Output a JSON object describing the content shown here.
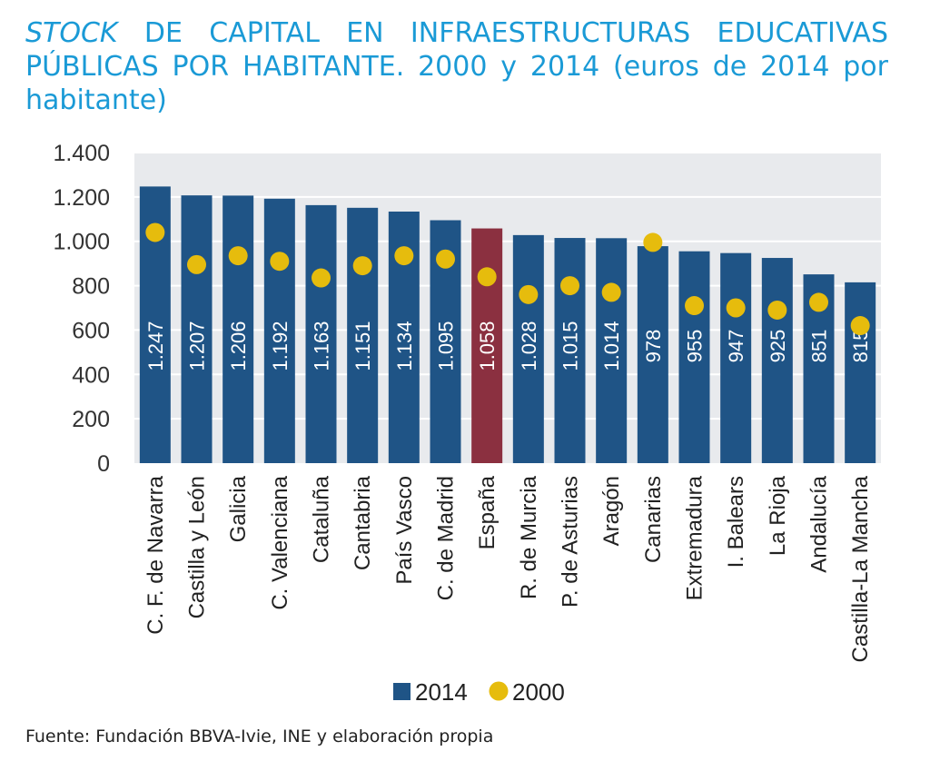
{
  "title": {
    "italic_word": "STOCK",
    "rest": " DE CAPITAL EN INFRAESTRUCTURAS EDUCATIVAS PÚBLICAS POR HABITANTE. 2000 y 2014 (euros de 2014 por habitante)"
  },
  "source": "Fuente: Fundación BBVA-Ivie, INE y elaboración propia",
  "colors": {
    "bar": "#1f5486",
    "highlight_bar": "#8b3040",
    "dot": "#e6bc0d",
    "plot_bg": "#e8eaed",
    "grid": "#ffffff",
    "title": "#1a9ad6"
  },
  "chart_data": {
    "type": "bar",
    "categories": [
      "C. F. de Navarra",
      "Castilla y León",
      "Galicia",
      "C. Valenciana",
      "Cataluña",
      "Cantabria",
      "País Vasco",
      "C. de Madrid",
      "España",
      "R. de Murcia",
      "P. de Asturias",
      "Aragón",
      "Canarias",
      "Extremadura",
      "I. Balears",
      "La Rioja",
      "Andalucía",
      "Castilla-La Mancha"
    ],
    "highlight_category": "España",
    "series": [
      {
        "name": "2014",
        "mark": "bar",
        "values": [
          1247,
          1207,
          1206,
          1192,
          1163,
          1151,
          1134,
          1095,
          1058,
          1028,
          1015,
          1014,
          978,
          955,
          947,
          925,
          851,
          815
        ],
        "labels": [
          "1.247",
          "1.207",
          "1.206",
          "1.192",
          "1.163",
          "1.151",
          "1.134",
          "1.095",
          "1.058",
          "1.028",
          "1.015",
          "1.014",
          "978",
          "955",
          "947",
          "925",
          "851",
          "815"
        ]
      },
      {
        "name": "2000",
        "mark": "dot",
        "values": [
          1040,
          895,
          935,
          910,
          835,
          890,
          935,
          920,
          840,
          760,
          800,
          770,
          995,
          710,
          700,
          690,
          725,
          620
        ]
      }
    ],
    "ylim": [
      0,
      1400
    ],
    "yticks": [
      0,
      200,
      400,
      600,
      800,
      1000,
      1200,
      1400
    ],
    "ytick_labels": [
      "0",
      "200",
      "400",
      "600",
      "800",
      "1.000",
      "1.200",
      "1.400"
    ],
    "grid": true,
    "legend_position": "bottom"
  }
}
